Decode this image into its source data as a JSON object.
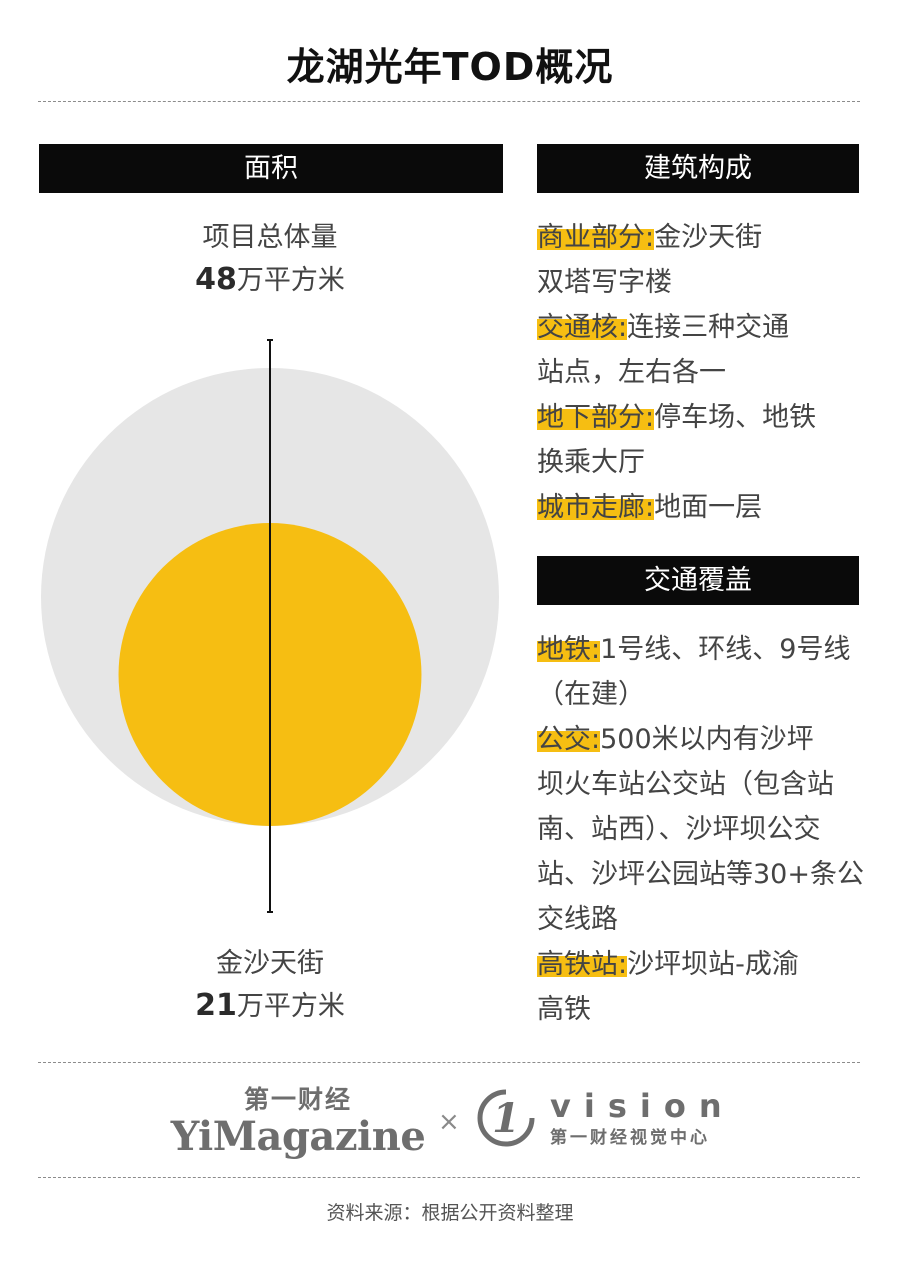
{
  "title": "龙湖光年TOD概况",
  "colors": {
    "highlight": "#f6be12",
    "bar_bg": "#0a0a0a",
    "outer_circle": "#e6e6e6",
    "inner_circle": "#f6be12"
  },
  "area_section": {
    "header": "面积",
    "top_label": {
      "name": "项目总体量",
      "value": "48",
      "unit": "万平方米"
    },
    "bottom_label": {
      "name": "金沙天街",
      "value": "21",
      "unit": "万平方米"
    }
  },
  "chart_data": {
    "type": "bubble",
    "unit": "万平方米",
    "series": [
      {
        "name": "项目总体量",
        "value": 48,
        "color": "#e6e6e6"
      },
      {
        "name": "金沙天街",
        "value": 21,
        "color": "#f6be12"
      }
    ]
  },
  "building_section": {
    "header": "建筑构成",
    "items": [
      {
        "key": "商业部分:",
        "text": "金沙天街",
        "cont": "双塔写字楼"
      },
      {
        "key": "交通核:",
        "text": "连接三种交通",
        "cont": "站点，左右各一"
      },
      {
        "key": "地下部分:",
        "text": "停车场、地铁",
        "cont": "换乘大厅"
      },
      {
        "key": "城市走廊:",
        "text": "地面一层",
        "cont": ""
      }
    ]
  },
  "traffic_section": {
    "header": "交通覆盖",
    "items": [
      {
        "key": "地铁:",
        "text": "1号线、环线、9号线",
        "cont": "（在建）"
      },
      {
        "key": "公交:",
        "text": "500米以内有沙坪",
        "cont": "坝火车站公交站（包含站南、站西）、沙坪坝公交站、沙坪公园站等30+条公交线路"
      },
      {
        "key": "高铁站:",
        "text": "沙坪坝站-成渝",
        "cont": "高铁"
      }
    ]
  },
  "footer": {
    "logo_left_cn": "第一财经",
    "logo_left_en": "YiMagazine",
    "logo_separator": "×",
    "logo_right_mark": "1",
    "logo_right_en": "vision",
    "logo_right_cn": "第一财经视觉中心",
    "source": "资料来源：根据公开资料整理"
  }
}
